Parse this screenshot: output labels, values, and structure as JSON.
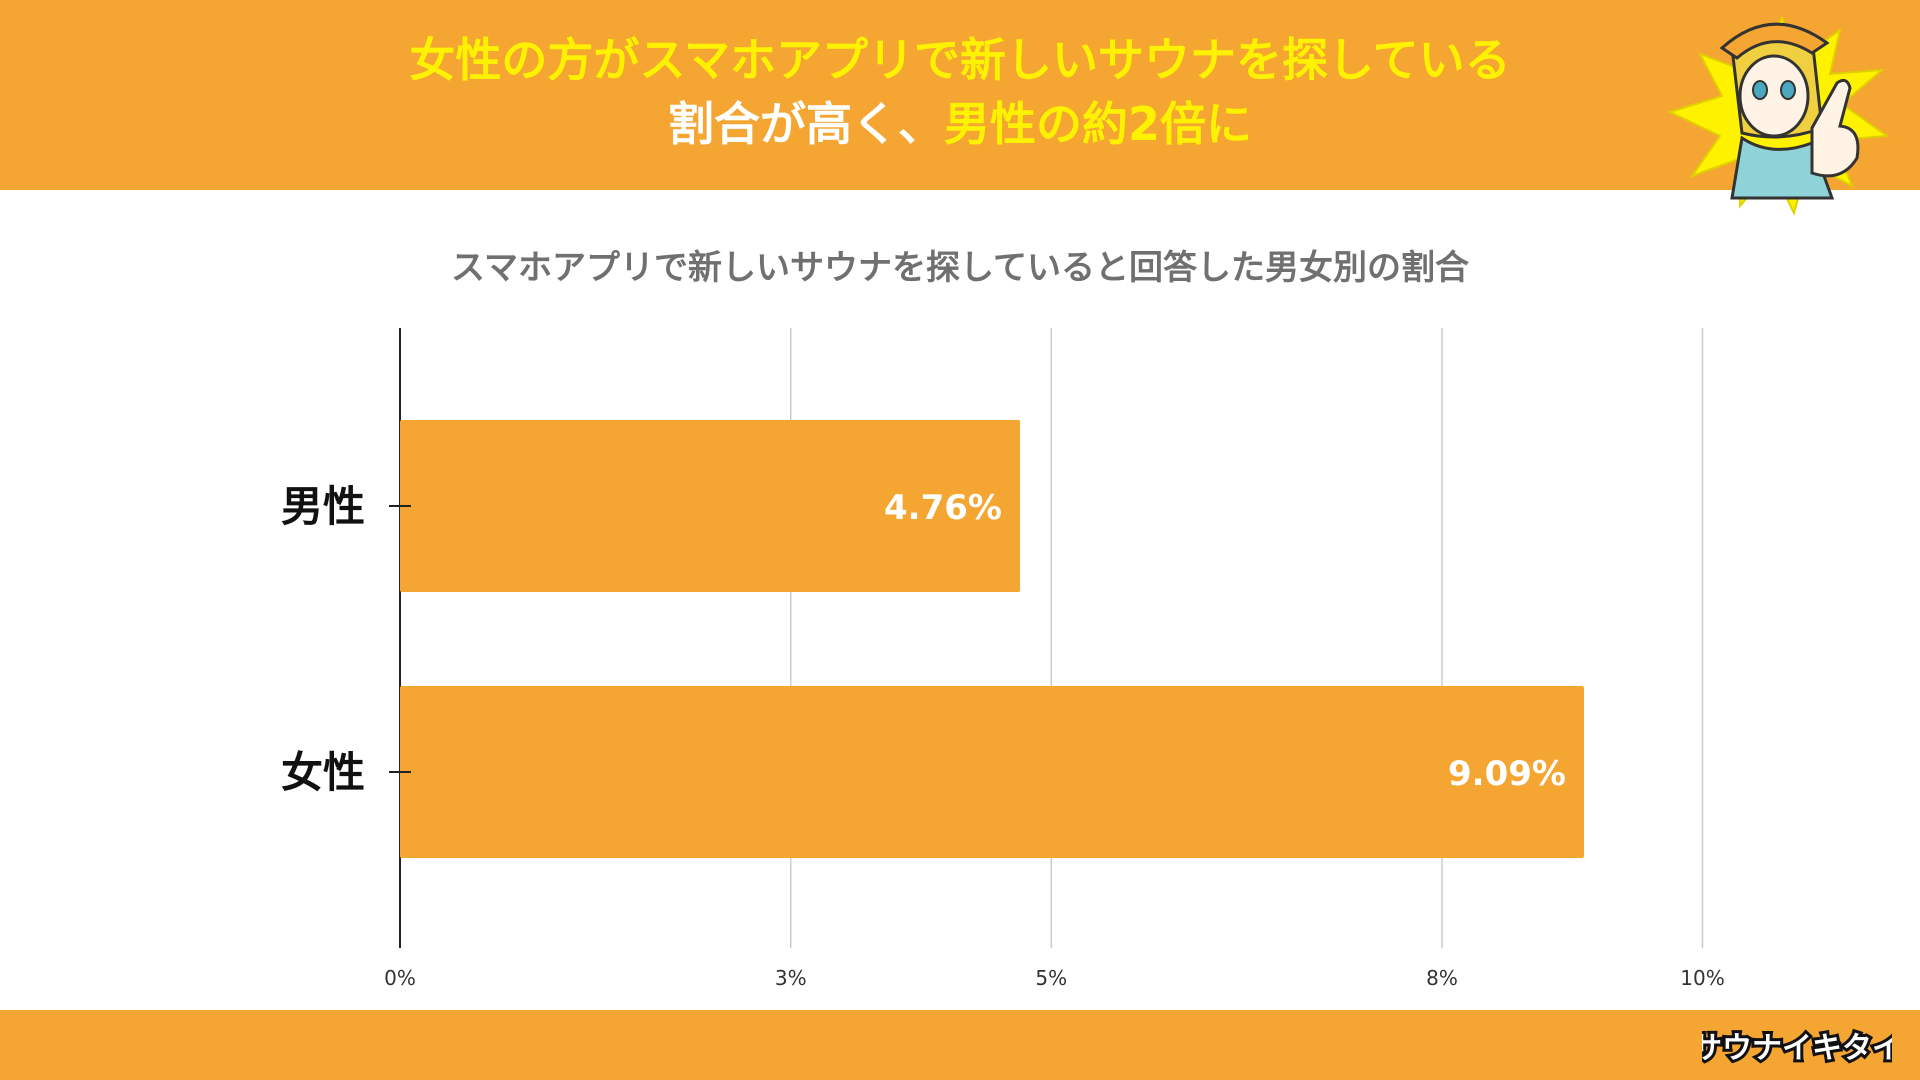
{
  "header": {
    "line1": "女性の方がスマホアプリで新しいサウナを探している",
    "line2_part1": "割合が高く、",
    "line2_part2": "男性の約2倍に"
  },
  "brand": {
    "logo_text": "サウナイキタイ"
  },
  "colors": {
    "accent": "#f4a532",
    "highlight": "#fff200",
    "grid": "#cccccc"
  },
  "chart_data": {
    "type": "bar",
    "orientation": "horizontal",
    "title": "スマホアプリで新しいサウナを探していると回答した男女別の割合",
    "categories": [
      "男性",
      "女性"
    ],
    "values": [
      4.76,
      9.09
    ],
    "value_labels": [
      "4.76%",
      "9.09%"
    ],
    "xlim": [
      0,
      12
    ],
    "x_ticks": [
      0,
      3,
      5,
      8,
      10
    ],
    "x_tick_labels": [
      "0%",
      "3%",
      "5%",
      "8%",
      "10%"
    ],
    "grid": true,
    "color": "#f4a532"
  }
}
